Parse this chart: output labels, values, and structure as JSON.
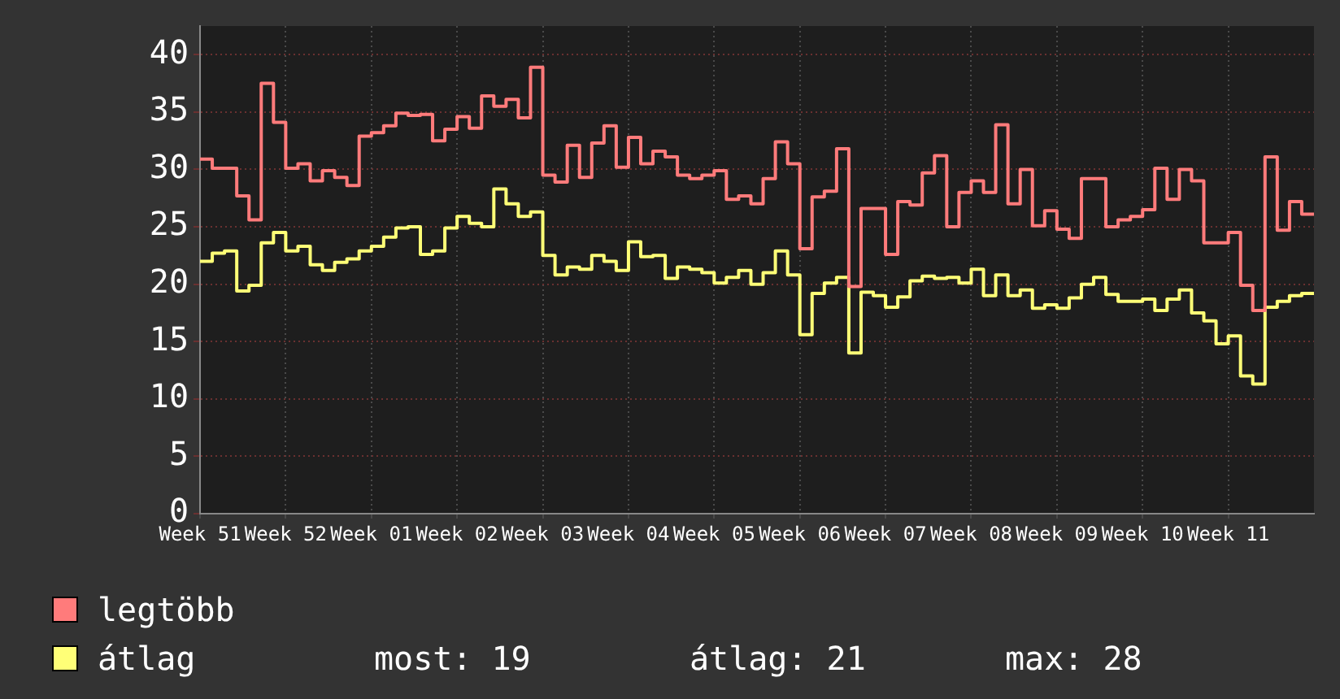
{
  "chart_data": {
    "type": "step",
    "categories": [
      "Week 51",
      null,
      null,
      null,
      null,
      null,
      null,
      "Week 52",
      null,
      null,
      null,
      null,
      null,
      null,
      "Week 01",
      null,
      null,
      null,
      null,
      null,
      null,
      "Week 02",
      null,
      null,
      null,
      null,
      null,
      null,
      "Week 03",
      null,
      null,
      null,
      null,
      null,
      null,
      "Week 04",
      null,
      null,
      null,
      null,
      null,
      null,
      "Week 05",
      null,
      null,
      null,
      null,
      null,
      null,
      "Week 06",
      null,
      null,
      null,
      null,
      null,
      null,
      "Week 07",
      null,
      null,
      null,
      null,
      null,
      null,
      "Week 08",
      null,
      null,
      null,
      null,
      null,
      null,
      "Week 09",
      null,
      null,
      null,
      null,
      null,
      null,
      "Week 10",
      null,
      null,
      null,
      null,
      null,
      null,
      "Week 11",
      null,
      null,
      null,
      null,
      null,
      null,
      null
    ],
    "ylim": [
      0,
      42.5
    ],
    "yticks": [
      0,
      5,
      10,
      15,
      20,
      25,
      30,
      35,
      40
    ],
    "grid": true,
    "legend": "bottom left",
    "annotations": [
      "most: 19",
      "átlag: 21",
      "max: 28"
    ],
    "series": [
      {
        "name": "legtöbb",
        "color": "#ff7b7b",
        "values": [
          30.9,
          30.1,
          30.1,
          27.7,
          25.6,
          37.5,
          34.1,
          30.1,
          30.5,
          29.0,
          29.9,
          29.3,
          28.6,
          32.9,
          33.2,
          33.8,
          34.9,
          34.7,
          34.8,
          32.5,
          33.5,
          34.6,
          33.6,
          36.4,
          35.5,
          36.1,
          34.5,
          38.9,
          29.5,
          28.9,
          32.1,
          29.3,
          32.3,
          33.8,
          30.2,
          32.8,
          30.5,
          31.6,
          31.1,
          29.5,
          29.2,
          29.5,
          29.9,
          27.4,
          27.7,
          27.0,
          29.2,
          32.4,
          30.5,
          23.1,
          27.6,
          28.1,
          31.8,
          19.8,
          26.6,
          26.6,
          22.6,
          27.2,
          26.9,
          29.7,
          31.2,
          25.0,
          28.0,
          29.0,
          28.0,
          33.9,
          27.0,
          30.0,
          25.1,
          26.4,
          24.8,
          24.0,
          29.2,
          29.2,
          25.0,
          25.6,
          25.9,
          26.5,
          30.1,
          27.4,
          30.0,
          29.0,
          23.6,
          23.6,
          24.5,
          19.9,
          17.7,
          31.1,
          24.7,
          27.2,
          26.1,
          26.1
        ]
      },
      {
        "name": "átlag",
        "color": "#ffff77",
        "values": [
          22.0,
          22.7,
          22.9,
          19.4,
          19.9,
          23.6,
          24.5,
          22.9,
          23.3,
          21.7,
          21.2,
          21.9,
          22.2,
          22.9,
          23.3,
          24.1,
          24.9,
          25.0,
          22.6,
          22.9,
          24.9,
          25.9,
          25.3,
          25.0,
          28.3,
          27.0,
          25.9,
          26.3,
          22.5,
          20.8,
          21.5,
          21.3,
          22.5,
          22.0,
          21.2,
          23.7,
          22.4,
          22.5,
          20.5,
          21.5,
          21.3,
          21.0,
          20.1,
          20.6,
          21.2,
          20.0,
          21.0,
          22.9,
          20.8,
          15.6,
          19.2,
          20.1,
          20.6,
          14.0,
          19.3,
          19.0,
          18.0,
          18.9,
          20.3,
          20.7,
          20.5,
          20.6,
          20.1,
          21.3,
          19.0,
          20.8,
          19.0,
          19.5,
          17.9,
          18.2,
          17.9,
          18.8,
          20.0,
          20.6,
          19.1,
          18.5,
          18.5,
          18.7,
          17.7,
          18.7,
          19.5,
          17.5,
          16.8,
          14.8,
          15.5,
          12.0,
          11.3,
          18.0,
          18.5,
          19.0,
          19.2,
          19.2
        ]
      }
    ]
  }
}
